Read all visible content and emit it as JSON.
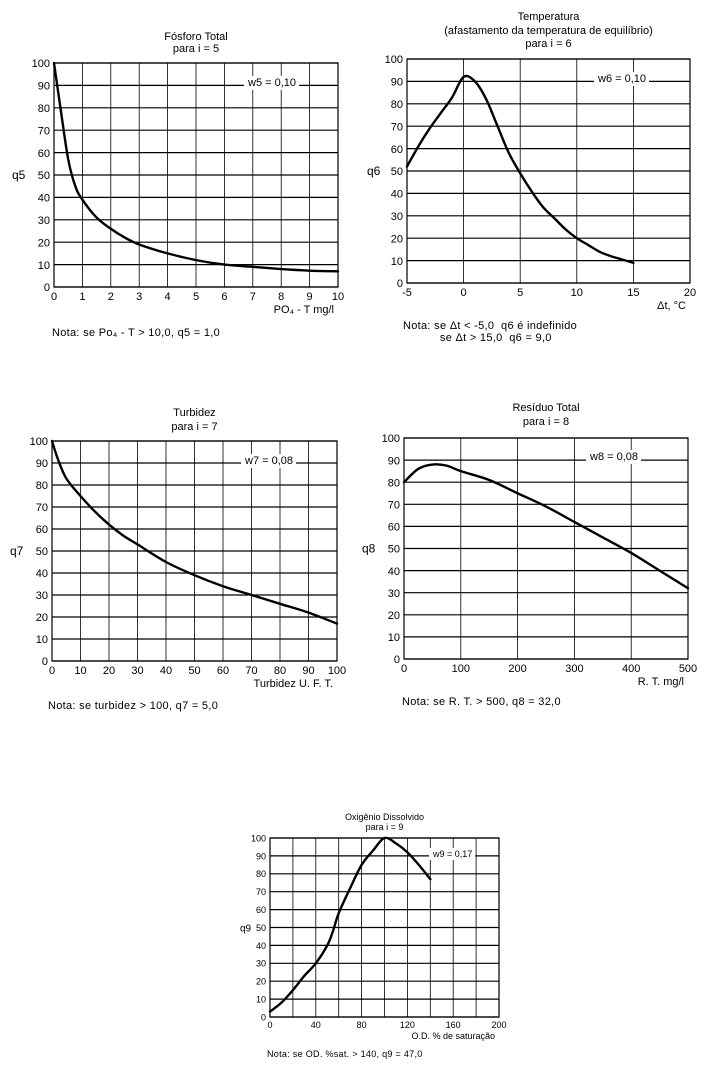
{
  "chart_data": [
    {
      "id": "fosforo",
      "type": "line",
      "title": "Fósforo Total",
      "subtitle": "para i = 5",
      "ylabel": "q5",
      "xlabel": "PO₄ - T mg/l",
      "weight_label": "w5 = 0,10",
      "xlim": [
        0,
        10
      ],
      "ylim": [
        0,
        100
      ],
      "x_ticks": [
        "0",
        "1",
        "2",
        "3",
        "4",
        "5",
        "6",
        "7",
        "8",
        "9",
        "10"
      ],
      "y_ticks": [
        "0",
        "10",
        "20",
        "30",
        "40",
        "50",
        "60",
        "70",
        "80",
        "90",
        "100"
      ],
      "note": "Nota: se Po₄ - T > 10,0, q5 = 1,0",
      "series": [
        {
          "x": [
            0,
            0.25,
            0.5,
            0.75,
            1,
            1.5,
            2,
            2.5,
            3,
            4,
            5,
            6,
            7,
            8,
            9,
            10
          ],
          "y": [
            100,
            78,
            57,
            45,
            39,
            31,
            26,
            22,
            19,
            15,
            12,
            10,
            9,
            8,
            7.3,
            7
          ]
        }
      ]
    },
    {
      "id": "temperatura",
      "type": "line",
      "title": "Temperatura",
      "subtitle": "(afastamento da temperatura de equilíbrio)",
      "subtitle2": "para i = 6",
      "ylabel": "q6",
      "xlabel": "Δt, °C",
      "weight_label": "w6 = 0,10",
      "xlim": [
        -5,
        20
      ],
      "ylim": [
        0,
        100
      ],
      "x_ticks": [
        "-5",
        "0",
        "5",
        "10",
        "15",
        "20"
      ],
      "y_ticks": [
        "0",
        "10",
        "20",
        "30",
        "40",
        "50",
        "60",
        "70",
        "80",
        "90",
        "100"
      ],
      "note": "Nota: se Δt < -5,0  q6 é indefinido\n           se Δt > 15,0  q6 = 9,0",
      "series": [
        {
          "x": [
            -5,
            -4,
            -3,
            -2,
            -1,
            0,
            1,
            2,
            3,
            4,
            5,
            6,
            7,
            8,
            9,
            10,
            11,
            12,
            13,
            14,
            15
          ],
          "y": [
            52,
            61,
            69,
            76,
            83,
            92,
            90,
            82,
            70,
            58,
            49,
            41,
            34,
            29,
            24,
            20,
            17,
            14,
            12,
            10.5,
            9
          ]
        }
      ]
    },
    {
      "id": "turbidez",
      "type": "line",
      "title": "Turbidez",
      "subtitle": "para i = 7",
      "ylabel": "q7",
      "xlabel": "Turbidez U. F. T.",
      "weight_label": "w7 = 0,08",
      "xlim": [
        0,
        100
      ],
      "ylim": [
        0,
        100
      ],
      "x_ticks": [
        "0",
        "10",
        "20",
        "30",
        "40",
        "50",
        "60",
        "70",
        "80",
        "90",
        "100"
      ],
      "y_ticks": [
        "0",
        "10",
        "20",
        "30",
        "40",
        "50",
        "60",
        "70",
        "80",
        "90",
        "100"
      ],
      "note": "Nota: se turbidez > 100, q7 = 5,0",
      "series": [
        {
          "x": [
            0,
            2,
            5,
            10,
            15,
            20,
            25,
            30,
            40,
            50,
            60,
            70,
            80,
            90,
            100
          ],
          "y": [
            100,
            92,
            83,
            75,
            68,
            62,
            57,
            53,
            45,
            39,
            34,
            30,
            26,
            22,
            17
          ]
        }
      ]
    },
    {
      "id": "residuo",
      "type": "line",
      "title": "Resíduo Total",
      "subtitle": "para i = 8",
      "ylabel": "q8",
      "xlabel": "R. T. mg/l",
      "weight_label": "w8 = 0,08",
      "xlim": [
        0,
        500
      ],
      "ylim": [
        0,
        100
      ],
      "x_ticks": [
        "0",
        "100",
        "200",
        "300",
        "400",
        "500"
      ],
      "y_ticks": [
        "0",
        "10",
        "20",
        "30",
        "40",
        "50",
        "60",
        "70",
        "80",
        "90",
        "100"
      ],
      "note": "Nota: se R. T. > 500, q8 = 32,0",
      "series": [
        {
          "x": [
            0,
            25,
            50,
            75,
            100,
            150,
            200,
            250,
            300,
            350,
            400,
            450,
            500
          ],
          "y": [
            80,
            86,
            88,
            87.5,
            85,
            81,
            75,
            69,
            62,
            55,
            48,
            40,
            32
          ]
        }
      ]
    },
    {
      "id": "oxigenio",
      "type": "line",
      "title": "Oxigênio Dissolvido",
      "subtitle": "para i = 9",
      "ylabel": "q9",
      "xlabel": "O.D. % de saturação",
      "weight_label": "w9 = 0,17",
      "xlim": [
        0,
        200
      ],
      "ylim": [
        0,
        100
      ],
      "x_ticks": [
        "0",
        "40",
        "80",
        "120",
        "160",
        "200"
      ],
      "x_tick_values": [
        0,
        40,
        80,
        120,
        160,
        200
      ],
      "x_grid_step": 20,
      "y_ticks": [
        "0",
        "10",
        "20",
        "30",
        "40",
        "50",
        "60",
        "70",
        "80",
        "90",
        "100"
      ],
      "note": "Nota: se OD. %sat. > 140, q9 = 47,0",
      "series": [
        {
          "x": [
            0,
            10,
            20,
            30,
            40,
            50,
            55,
            60,
            70,
            80,
            90,
            100,
            110,
            120,
            130,
            140
          ],
          "y": [
            3,
            8,
            15,
            23,
            30,
            40,
            48,
            58,
            72,
            85,
            93,
            100,
            97,
            92,
            85,
            77
          ]
        }
      ]
    }
  ]
}
